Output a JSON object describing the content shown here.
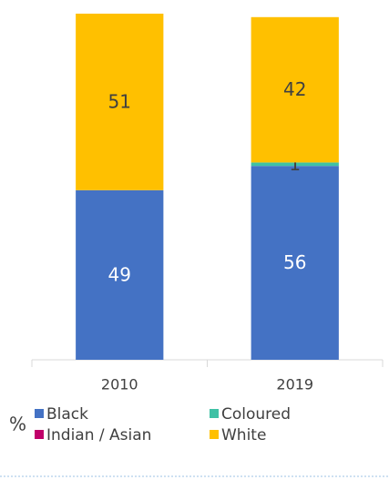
{
  "chart_data": {
    "type": "stacked_bar",
    "categories": [
      "2010",
      "2019"
    ],
    "series": [
      {
        "name": "Black",
        "color": "#4472c4",
        "values": [
          49,
          56
        ]
      },
      {
        "name": "Coloured",
        "color": "#3fc1a5",
        "values": [
          0,
          1
        ]
      },
      {
        "name": "Indian / Asian",
        "color": "#c0006a",
        "values": [
          0,
          0
        ]
      },
      {
        "name": "White",
        "color": "#ffc000",
        "values": [
          51,
          42
        ]
      }
    ],
    "ylim": [
      0,
      100
    ],
    "unit_label": "%",
    "legend": "bottom"
  }
}
